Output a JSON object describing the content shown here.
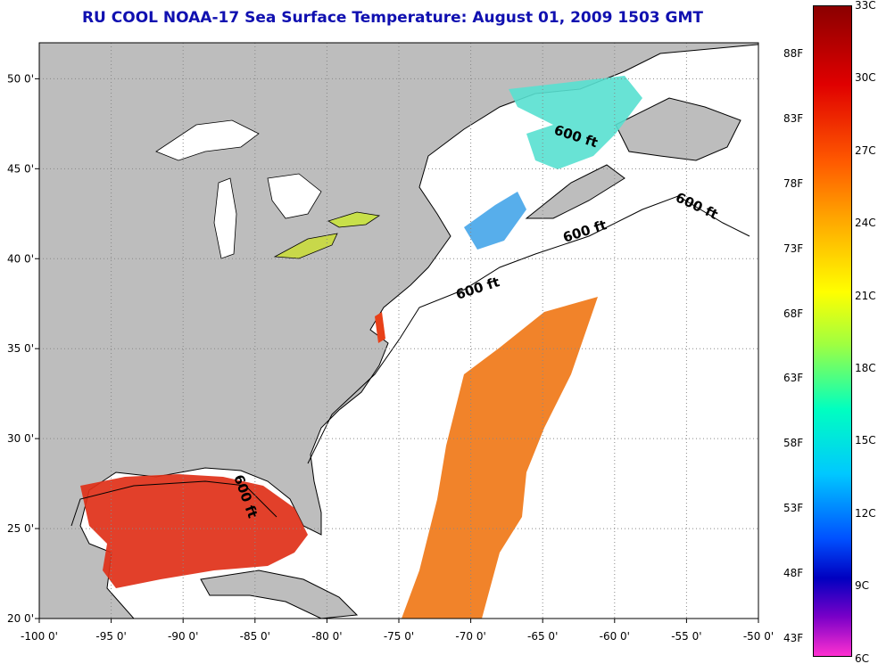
{
  "title": "RU COOL  NOAA-17  Sea Surface Temperature:  August 01, 2009 1503 GMT",
  "map": {
    "lat_ticks": [
      "20 0'",
      "25 0'",
      "30 0'",
      "35 0'",
      "40 0'",
      "45 0'",
      "50 0'"
    ],
    "lon_ticks": [
      "-100 0'",
      "-95 0'",
      "-90 0'",
      "-85 0'",
      "-80 0'",
      "-75 0'",
      "-70 0'",
      "-65 0'",
      "-60 0'",
      "-55 0'",
      "-50 0'"
    ],
    "extent": {
      "lon": [
        -100,
        -50
      ],
      "lat": [
        20,
        52
      ]
    },
    "contour_labels": [
      "600 ft",
      "600 ft",
      "600 ft",
      "600 ft",
      "600 ft"
    ],
    "colors": {
      "land": "#bdbdbd",
      "water": "#ffffff",
      "grid": "#888888",
      "title": "#1010b0"
    }
  },
  "colorbar": {
    "celsius": [
      "33C",
      "30C",
      "27C",
      "24C",
      "21C",
      "18C",
      "15C",
      "12C",
      "9C",
      "6C"
    ],
    "fahrenheit": [
      "88F",
      "83F",
      "78F",
      "73F",
      "68F",
      "63F",
      "58F",
      "53F",
      "48F",
      "43F"
    ],
    "range_c": [
      6,
      33
    ]
  }
}
